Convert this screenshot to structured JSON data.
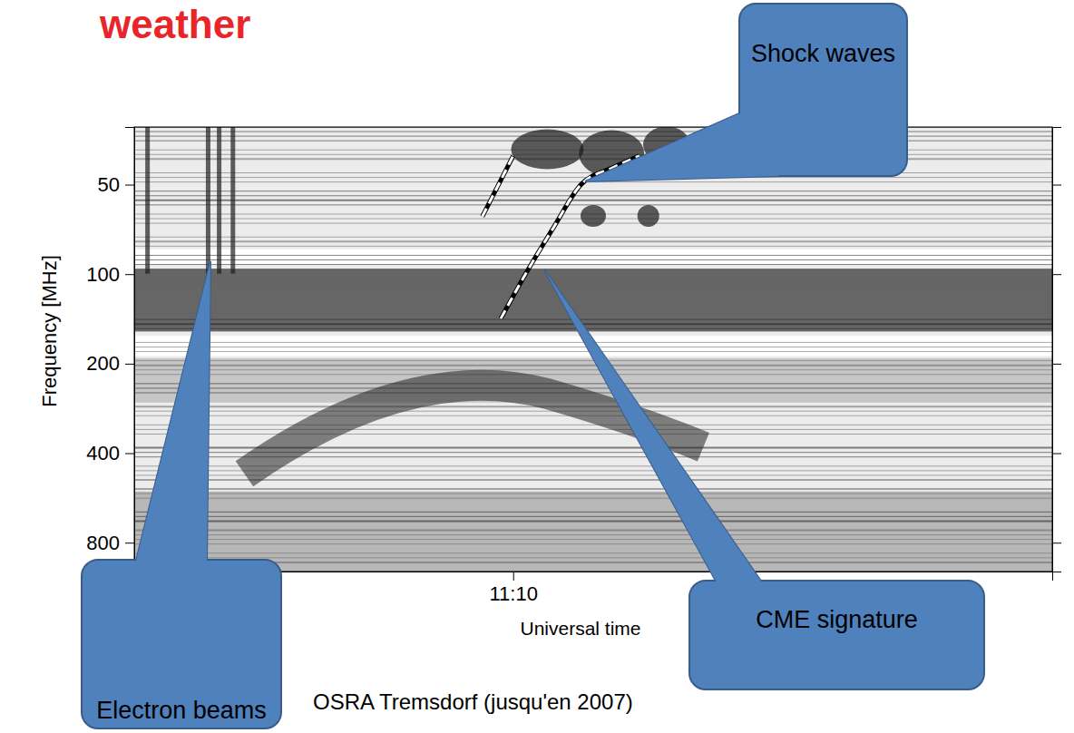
{
  "chart_data": {
    "type": "spectrogram",
    "title": "weather",
    "caption": "OSRA Tremsdorf (jusqu'en 2007)",
    "x_label": "Universal time",
    "y_label": "Frequency [MHz]",
    "xlim": [
      657.7,
      687.5
    ],
    "xticks": [
      {
        "value": 670,
        "label": "11:10"
      }
    ],
    "ylim": [
      32,
      1000
    ],
    "yticks": [
      50,
      100,
      200,
      400,
      800
    ],
    "log": "y",
    "series": [
      {
        "color": "#ffffff",
        "line_style": "dashed",
        "x": [
          669.6,
          670.4,
          671.3,
          672.2,
          673.2,
          674.1
        ],
        "values": [
          141,
          100,
          70,
          50,
          44,
          40
        ]
      },
      {
        "color": "#ffffff",
        "line_style": "dashed",
        "x": [
          669.0,
          670.0
        ],
        "values": [
          64,
          40
        ]
      }
    ],
    "annotations": [
      "Shock waves",
      "Electron beams",
      "CME signature"
    ]
  }
}
